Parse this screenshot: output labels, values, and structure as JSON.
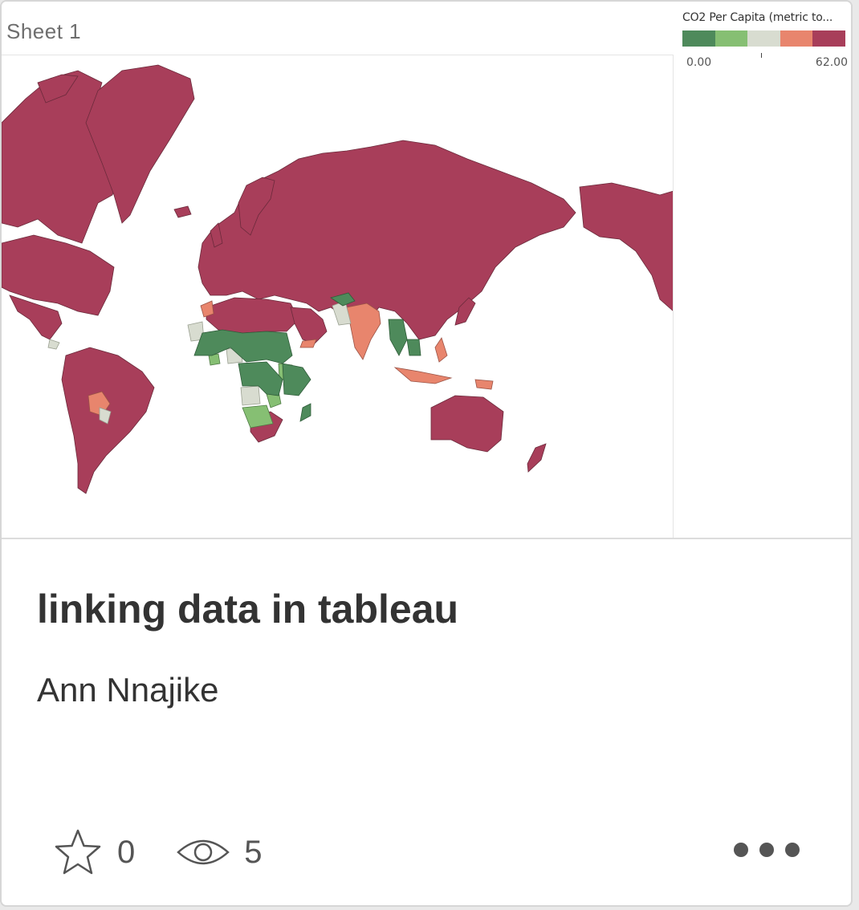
{
  "sheet": {
    "title": "Sheet 1"
  },
  "legend": {
    "title": "CO2 Per Capita (metric to...",
    "min_label": "0.00",
    "max_label": "62.00",
    "colors": [
      "#4e8a5b",
      "#86bf73",
      "#d8dcd0",
      "#e8856d",
      "#a83e5a"
    ]
  },
  "map": {
    "land_color": "#a83e5a",
    "border_color": "#6b2a3b"
  },
  "workbook": {
    "title": "linking data in tableau",
    "author": "Ann Nnajike"
  },
  "stats": {
    "favorites_icon": "star-icon",
    "favorites": "0",
    "views_icon": "eye-icon",
    "views": "5"
  },
  "actions": {
    "more_icon": "more-options-icon"
  }
}
